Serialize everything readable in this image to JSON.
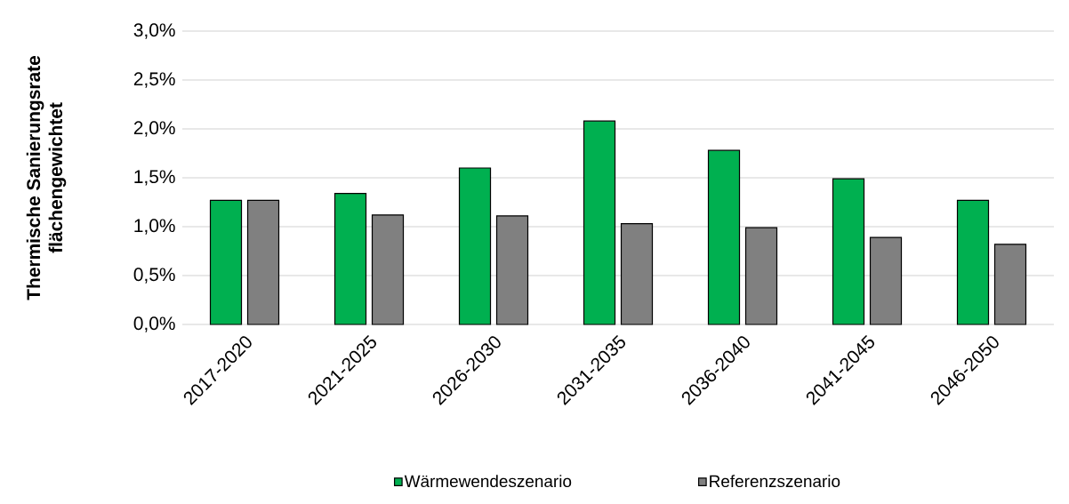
{
  "chart_data": {
    "type": "bar",
    "ylabel": "Thermische Sanierungsrate\nflächengewichtet",
    "categories": [
      "2017-2020",
      "2021-2025",
      "2026-2030",
      "2031-2035",
      "2036-2040",
      "2041-2045",
      "2046-2050"
    ],
    "series": [
      {
        "name": "Wärmewendeszenario",
        "color": "#00b050",
        "values": [
          1.27,
          1.34,
          1.6,
          2.08,
          1.78,
          1.49,
          1.27
        ]
      },
      {
        "name": "Referenzszenario",
        "color": "#808080",
        "values": [
          1.27,
          1.12,
          1.11,
          1.03,
          0.99,
          0.89,
          0.82
        ]
      }
    ],
    "ylim": [
      0,
      3.0
    ],
    "yticks": [
      {
        "value": 0,
        "label": "0,0%"
      },
      {
        "value": 0.5,
        "label": "0,5%"
      },
      {
        "value": 1.0,
        "label": "1,0%"
      },
      {
        "value": 1.5,
        "label": "1,5%"
      },
      {
        "value": 2.0,
        "label": "2,0%"
      },
      {
        "value": 2.5,
        "label": "2,5%"
      },
      {
        "value": 3.0,
        "label": "3,0%"
      }
    ],
    "grid": "y",
    "legend": "bottom"
  }
}
